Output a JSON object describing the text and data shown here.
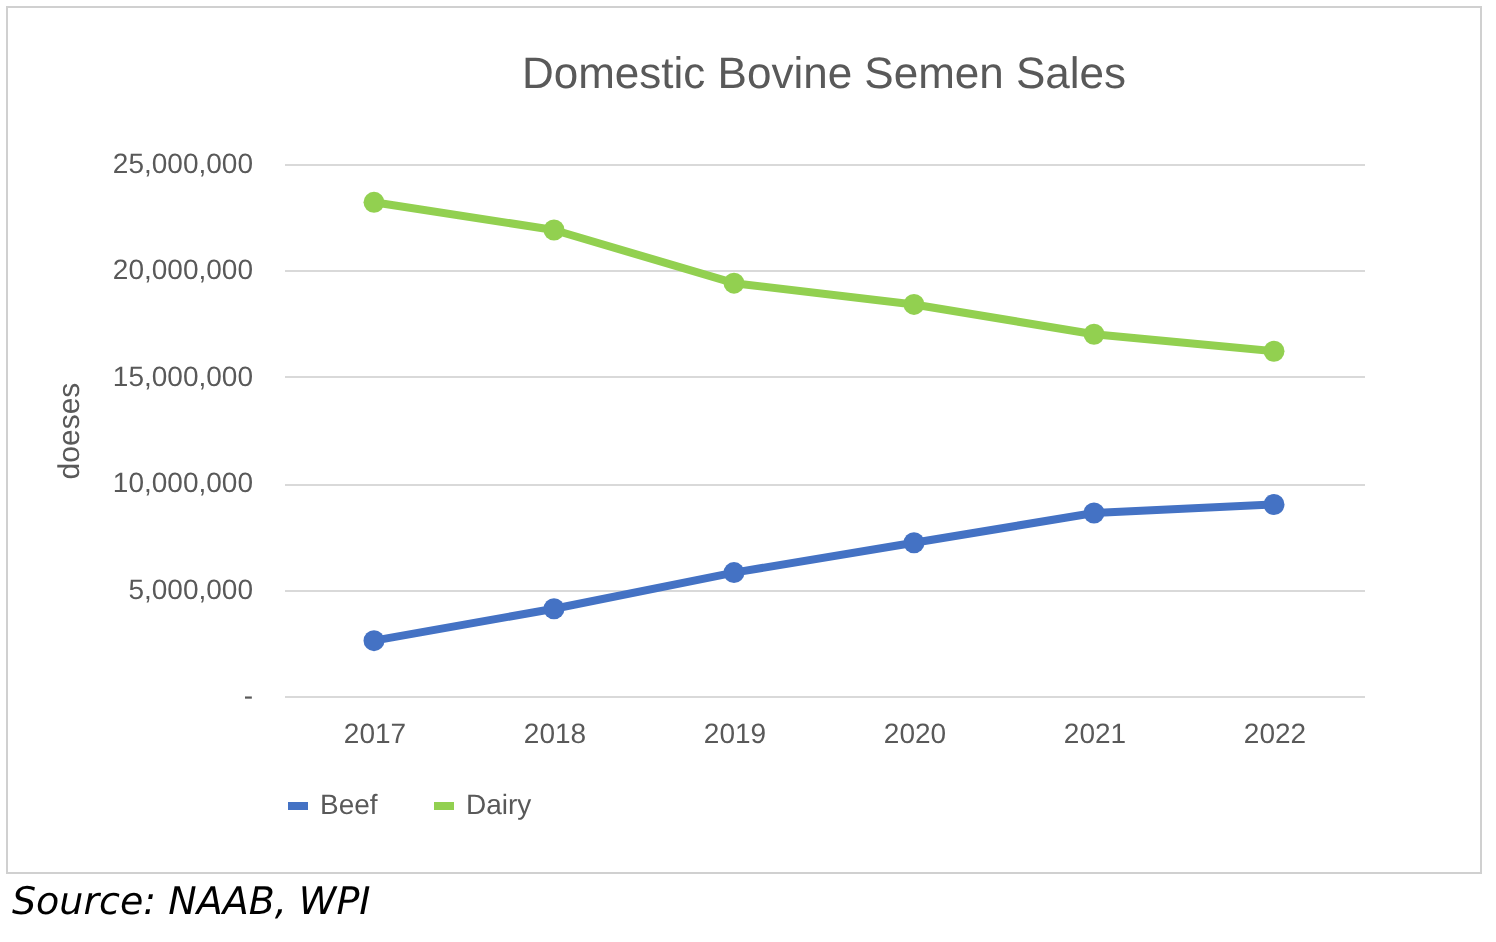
{
  "chart_data": {
    "type": "line",
    "title": "Domestic Bovine Semen Sales",
    "ylabel": "doeses",
    "categories": [
      "2017",
      "2018",
      "2019",
      "2020",
      "2021",
      "2022"
    ],
    "series": [
      {
        "name": "Beef",
        "color": "#4472c4",
        "values": [
          2600000,
          4100000,
          5800000,
          7200000,
          8600000,
          9000000
        ]
      },
      {
        "name": "Dairy",
        "color": "#92d050",
        "values": [
          23200000,
          21900000,
          19400000,
          18400000,
          17000000,
          16200000
        ]
      }
    ],
    "ylim": [
      0,
      25000000
    ],
    "yticks": [
      {
        "value": 0,
        "label": "-"
      },
      {
        "value": 5000000,
        "label": "5,000,000"
      },
      {
        "value": 10000000,
        "label": "10,000,000"
      },
      {
        "value": 15000000,
        "label": "15,000,000"
      },
      {
        "value": 20000000,
        "label": "20,000,000"
      },
      {
        "value": 25000000,
        "label": "25,000,000"
      }
    ],
    "grid": "y",
    "legend": "bottom",
    "marker": "circle",
    "line_style": "solid",
    "annotations": [
      "Source: NAAB, WPI"
    ]
  }
}
